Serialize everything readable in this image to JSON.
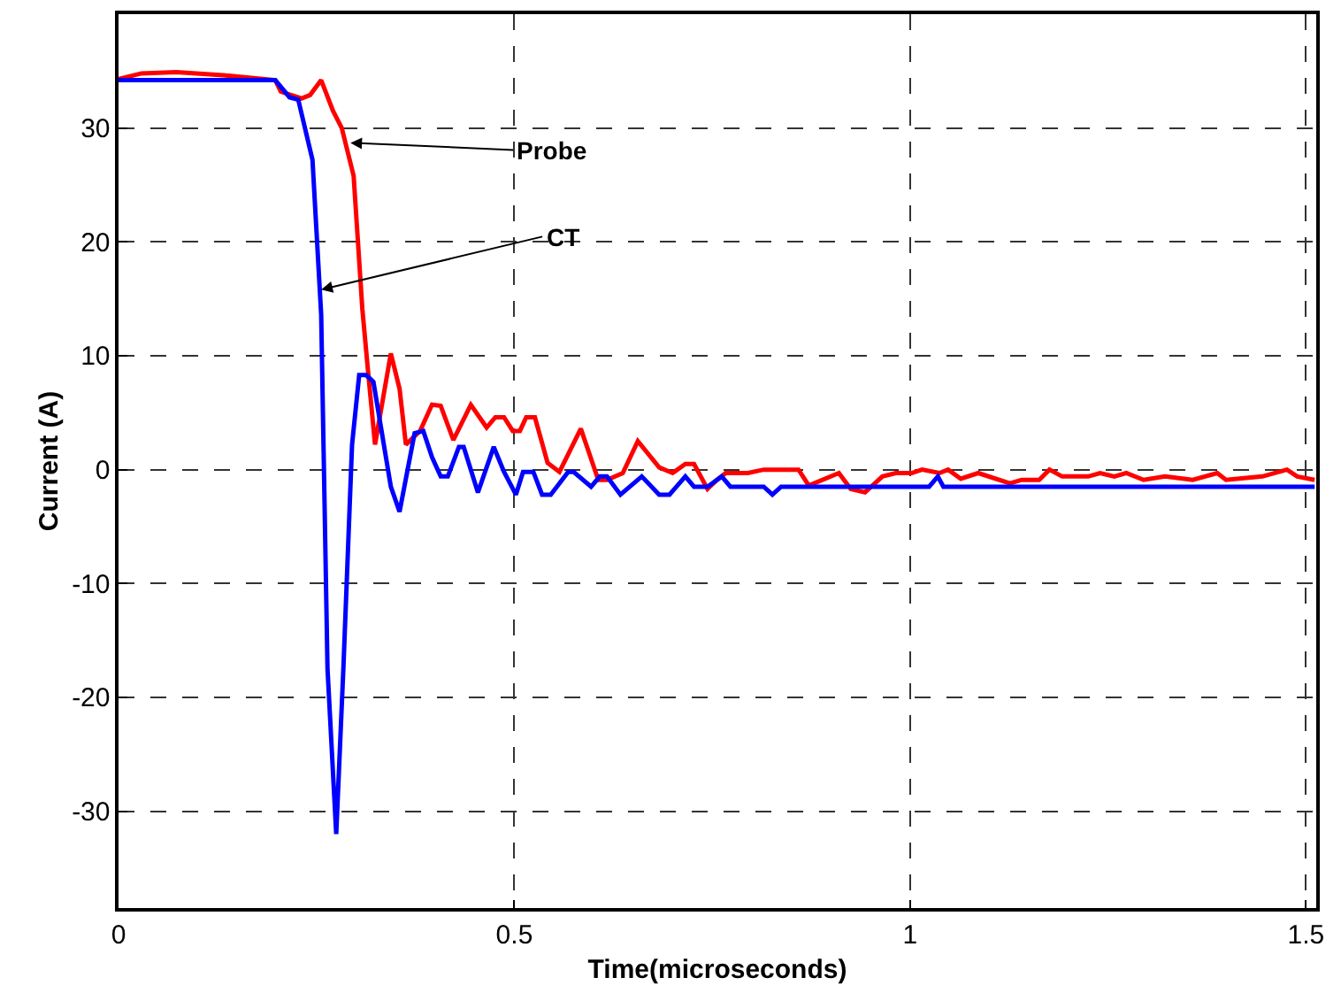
{
  "chart_data": {
    "type": "line",
    "xlabel": "Time(microseconds)",
    "ylabel": "Current (A)",
    "xlim": [
      0,
      1.513
    ],
    "ylim": [
      -38.5,
      40
    ],
    "xticks": [
      0,
      0.5,
      1,
      1.5
    ],
    "yticks": [
      -30,
      -20,
      -10,
      0,
      10,
      20,
      30
    ],
    "grid": true,
    "marker": "none",
    "line_style": "solid",
    "series": [
      {
        "color": "#ff0000",
        "x": [
          0,
          0.029,
          0.073,
          0.139,
          0.198,
          0.205,
          0.231,
          0.242,
          0.256,
          0.271,
          0.282,
          0.297,
          0.308,
          0.315,
          0.324,
          0.344,
          0.355,
          0.363,
          0.381,
          0.396,
          0.407,
          0.423,
          0.445,
          0.465,
          0.476,
          0.487,
          0.498,
          0.507,
          0.515,
          0.526,
          0.542,
          0.557,
          0.584,
          0.606,
          0.617,
          0.637,
          0.656,
          0.683,
          0.7,
          0.716,
          0.727,
          0.744,
          0.756,
          0.767,
          0.795,
          0.815,
          0.859,
          0.872,
          0.91,
          0.925,
          0.943,
          0.965,
          0.982,
          1.002,
          1.015,
          1.037,
          1.048,
          1.064,
          1.086,
          1.126,
          1.141,
          1.163,
          1.176,
          1.192,
          1.225,
          1.24,
          1.258,
          1.273,
          1.295,
          1.322,
          1.357,
          1.388,
          1.399,
          1.445,
          1.476,
          1.489,
          1.511
        ],
        "values": [
          34.3,
          34.8,
          34.9,
          34.6,
          34.2,
          33.2,
          32.6,
          32.9,
          34.2,
          31.5,
          30,
          25.8,
          14.1,
          8.8,
          2.2,
          10.2,
          7.1,
          2.2,
          3.4,
          5.7,
          5.6,
          2.6,
          5.7,
          3.7,
          4.6,
          4.6,
          3.4,
          3.4,
          4.6,
          4.6,
          0.6,
          -0.2,
          3.6,
          -0.9,
          -0.9,
          -0.3,
          2.5,
          0.2,
          -0.3,
          0.5,
          0.5,
          -1.7,
          -0.9,
          -0.3,
          -0.3,
          0,
          0,
          -1.4,
          -0.3,
          -1.7,
          -2.0,
          -0.6,
          -0.3,
          -0.3,
          0,
          -0.3,
          0,
          -0.8,
          -0.3,
          -1.2,
          -0.9,
          -0.9,
          0,
          -0.6,
          -0.6,
          -0.3,
          -0.6,
          -0.3,
          -0.9,
          -0.6,
          -0.9,
          -0.3,
          -0.9,
          -0.6,
          0,
          -0.6,
          -0.9
        ]
      },
      {
        "color": "#0000ff",
        "x": [
          0,
          0.198,
          0.216,
          0.227,
          0.245,
          0.256,
          0.264,
          0.275,
          0.284,
          0.295,
          0.304,
          0.313,
          0.322,
          0.344,
          0.355,
          0.374,
          0.385,
          0.396,
          0.407,
          0.416,
          0.43,
          0.436,
          0.454,
          0.474,
          0.487,
          0.502,
          0.511,
          0.524,
          0.535,
          0.546,
          0.568,
          0.575,
          0.597,
          0.608,
          0.617,
          0.634,
          0.661,
          0.683,
          0.696,
          0.716,
          0.727,
          0.744,
          0.762,
          0.773,
          0.815,
          0.826,
          0.837,
          1.024,
          1.035,
          1.042,
          1.511
        ],
        "values": [
          34.2,
          34.2,
          32.7,
          32.5,
          27.2,
          13.6,
          -17.5,
          -32,
          -17.5,
          2.2,
          8.3,
          8.3,
          7.7,
          -1.5,
          -3.7,
          3.2,
          3.4,
          1.1,
          -0.6,
          -0.6,
          2.0,
          2.0,
          -2.0,
          2.0,
          -0.2,
          -2.2,
          -0.2,
          -0.2,
          -2.2,
          -2.2,
          -0.2,
          -0.2,
          -1.5,
          -0.6,
          -0.6,
          -2.2,
          -0.6,
          -2.2,
          -2.2,
          -0.6,
          -1.5,
          -1.5,
          -0.6,
          -1.5,
          -1.5,
          -2.2,
          -1.5,
          -1.5,
          -0.6,
          -1.5,
          -1.5
        ]
      }
    ],
    "annotations": [
      {
        "text": "Probe",
        "x": 0.293,
        "y": 28.7
      },
      {
        "text": "CT",
        "x": 0.256,
        "y": 15.8
      }
    ]
  }
}
